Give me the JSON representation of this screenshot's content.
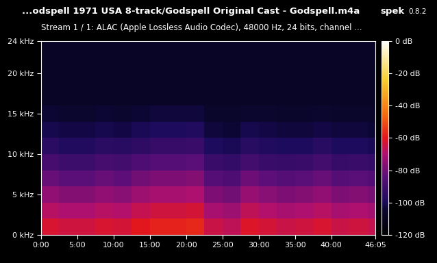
{
  "chart_data": {
    "type": "heatmap",
    "title": "...odspell 1971 USA 8-track/Godspell Original Cast - Godspell.m4a",
    "app": "spek",
    "version": "0.8.2",
    "subtitle": "Stream 1 / 1: ALAC (Apple Lossless Audio Codec), 48000 Hz, 24 bits, channel ...",
    "xlim": [
      0,
      2765
    ],
    "xticks": [
      {
        "value": 0,
        "label": "0:00"
      },
      {
        "value": 300,
        "label": "5:00"
      },
      {
        "value": 600,
        "label": "10:00"
      },
      {
        "value": 900,
        "label": "15:00"
      },
      {
        "value": 1200,
        "label": "20:00"
      },
      {
        "value": 1500,
        "label": "25:00"
      },
      {
        "value": 1800,
        "label": "30:00"
      },
      {
        "value": 2100,
        "label": "35:00"
      },
      {
        "value": 2400,
        "label": "40:00"
      },
      {
        "value": 2765,
        "label": "46:05"
      }
    ],
    "ylim": [
      0,
      24
    ],
    "yticks": [
      {
        "value": 0,
        "label": "0 kHz"
      },
      {
        "value": 5,
        "label": "5 kHz"
      },
      {
        "value": 10,
        "label": "10 kHz"
      },
      {
        "value": 15,
        "label": "15 kHz"
      },
      {
        "value": 20,
        "label": "20 kHz"
      },
      {
        "value": 24,
        "label": "24 kHz"
      }
    ],
    "time_edges": [
      0,
      150,
      300,
      450,
      600,
      750,
      900,
      1050,
      1200,
      1350,
      1500,
      1650,
      1800,
      1950,
      2100,
      2250,
      2400,
      2550,
      2700,
      2765
    ],
    "frequency_edges": [
      0,
      2,
      4,
      6,
      8,
      10,
      12,
      14,
      16,
      18,
      20,
      22,
      24
    ],
    "cells": [
      [
        -62,
        -64,
        -64,
        -62,
        -63,
        -60,
        -58,
        -58,
        -57,
        -65,
        -67,
        -61,
        -63,
        -65,
        -64,
        -62,
        -65,
        -64,
        -66
      ],
      [
        -68,
        -70,
        -70,
        -68,
        -69,
        -66,
        -64,
        -64,
        -63,
        -71,
        -73,
        -67,
        -69,
        -71,
        -70,
        -68,
        -71,
        -70,
        -72
      ],
      [
        -75,
        -77,
        -77,
        -75,
        -76,
        -73,
        -71,
        -71,
        -70,
        -78,
        -80,
        -74,
        -76,
        -78,
        -77,
        -75,
        -78,
        -77,
        -79
      ],
      [
        -82,
        -84,
        -84,
        -82,
        -83,
        -80,
        -78,
        -78,
        -77,
        -85,
        -87,
        -81,
        -83,
        -85,
        -84,
        -82,
        -85,
        -84,
        -86
      ],
      [
        -89,
        -91,
        -91,
        -89,
        -90,
        -87,
        -85,
        -85,
        -84,
        -92,
        -94,
        -90,
        -92,
        -93,
        -92,
        -90,
        -93,
        -92,
        -94
      ],
      [
        -96,
        -98,
        -98,
        -96,
        -97,
        -95,
        -93,
        -93,
        -92,
        -99,
        -100,
        -97,
        -98,
        -99,
        -99,
        -97,
        -99,
        -99,
        -100
      ],
      [
        -101,
        -102,
        -102,
        -101,
        -102,
        -100,
        -99,
        -99,
        -98,
        -103,
        -104,
        -101,
        -102,
        -103,
        -103,
        -102,
        -103,
        -103,
        -104
      ],
      [
        -104,
        -105,
        -105,
        -104,
        -105,
        -104,
        -103,
        -103,
        -103,
        -106,
        -106,
        -105,
        -105,
        -106,
        -106,
        -105,
        -106,
        -106,
        -106
      ],
      [
        -107,
        -107,
        -107,
        -107,
        -107,
        -107,
        -107,
        -107,
        -107,
        -107,
        -107,
        -107,
        -107,
        -107,
        -107,
        -107,
        -107,
        -107,
        -107
      ],
      [
        -107,
        -107,
        -107,
        -107,
        -107,
        -107,
        -107,
        -107,
        -107,
        -107,
        -107,
        -107,
        -107,
        -107,
        -107,
        -107,
        -107,
        -107,
        -107
      ],
      [
        -107,
        -107,
        -107,
        -107,
        -107,
        -107,
        -107,
        -107,
        -107,
        -107,
        -107,
        -107,
        -107,
        -107,
        -107,
        -107,
        -107,
        -107,
        -107
      ],
      [
        -107,
        -107,
        -107,
        -107,
        -107,
        -107,
        -107,
        -107,
        -107,
        -107,
        -107,
        -107,
        -107,
        -107,
        -107,
        -107,
        -107,
        -107,
        -107
      ]
    ],
    "colorbar_range": [
      -120,
      0
    ],
    "colorbar_ticks": [
      {
        "value": 0,
        "label": "0 dB"
      },
      {
        "value": -20,
        "label": "-20 dB"
      },
      {
        "value": -40,
        "label": "-40 dB"
      },
      {
        "value": -60,
        "label": "-60 dB"
      },
      {
        "value": -80,
        "label": "-80 dB"
      },
      {
        "value": -100,
        "label": "-100 dB"
      },
      {
        "value": -120,
        "label": "-120 dB"
      }
    ]
  }
}
